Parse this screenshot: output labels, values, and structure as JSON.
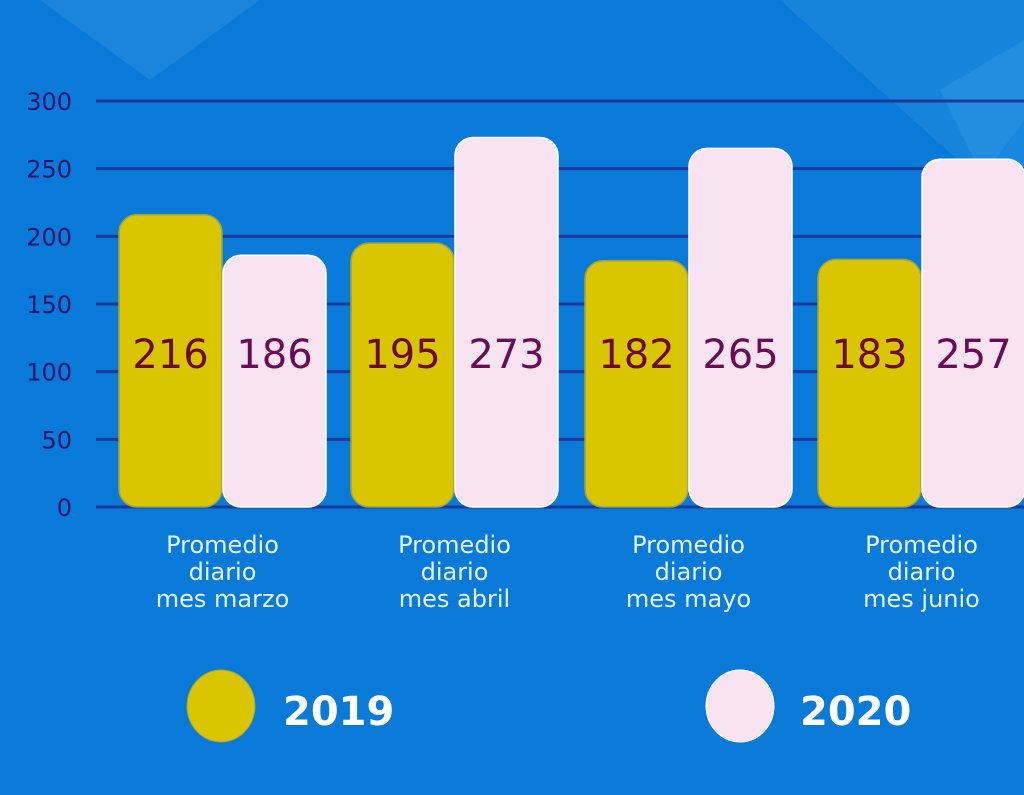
{
  "chart_data": {
    "type": "bar",
    "title": "",
    "xlabel": "",
    "ylabel": "",
    "ylim": [
      0,
      300
    ],
    "yticks": [
      0,
      50,
      100,
      150,
      200,
      250,
      300
    ],
    "grid": true,
    "categories": [
      [
        "Promedio",
        "diario",
        "mes marzo"
      ],
      [
        "Promedio",
        "diario",
        "mes abril"
      ],
      [
        "Promedio",
        "diario",
        "mes mayo"
      ],
      [
        "Promedio",
        "diario",
        "mes junio"
      ]
    ],
    "series": [
      {
        "name": "2019",
        "values": [
          216,
          195,
          182,
          183
        ],
        "color": "#d9c500",
        "label_color": "#6b0a2e"
      },
      {
        "name": "2020",
        "values": [
          186,
          273,
          265,
          257
        ],
        "color": "#f8e4f0",
        "label_color": "#6b0a55"
      }
    ],
    "legend": {
      "placement": "bottom",
      "entries": [
        "2019",
        "2020"
      ]
    }
  },
  "colors": {
    "background": "#0a7ad8",
    "gridline": "#1a3a9a",
    "tick_text": "#2a1470",
    "category_text": "#e6f6ff",
    "legend_text": "#ffffff"
  }
}
